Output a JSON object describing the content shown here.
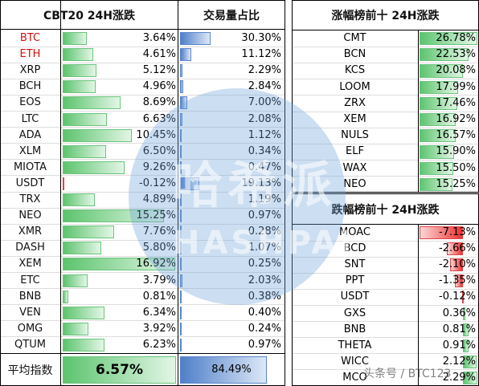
{
  "left_table": {
    "headers": [
      "CBT20 24H涨跌",
      "交易量占比"
    ],
    "rows": [
      {
        "name": "BTC",
        "change": "3.64%",
        "volume": "30.30%",
        "name_color": "#d01010"
      },
      {
        "name": "ETH",
        "change": "4.61%",
        "volume": "11.12%",
        "name_color": "#d01010"
      },
      {
        "name": "XRP",
        "change": "5.12%",
        "volume": "2.29%"
      },
      {
        "name": "BCH",
        "change": "4.96%",
        "volume": "2.84%"
      },
      {
        "name": "EOS",
        "change": "8.69%",
        "volume": "7.00%"
      },
      {
        "name": "LTC",
        "change": "6.63%",
        "volume": "2.08%"
      },
      {
        "name": "ADA",
        "change": "10.45%",
        "volume": "1.12%"
      },
      {
        "name": "XLM",
        "change": "6.50%",
        "volume": "0.34%"
      },
      {
        "name": "MIOTA",
        "change": "9.26%",
        "volume": "0.47%"
      },
      {
        "name": "USDT",
        "change": "-0.12%",
        "volume": "19.13%"
      },
      {
        "name": "TRX",
        "change": "4.89%",
        "volume": "1.19%"
      },
      {
        "name": "NEO",
        "change": "15.25%",
        "volume": "0.97%"
      },
      {
        "name": "XMR",
        "change": "7.76%",
        "volume": "0.28%"
      },
      {
        "name": "DASH",
        "change": "5.80%",
        "volume": "1.07%"
      },
      {
        "name": "XEM",
        "change": "16.92%",
        "volume": "0.25%"
      },
      {
        "name": "ETC",
        "change": "3.79%",
        "volume": "2.03%"
      },
      {
        "name": "BNB",
        "change": "0.81%",
        "volume": "0.38%"
      },
      {
        "name": "VEN",
        "change": "6.34%",
        "volume": "0.40%"
      },
      {
        "name": "OMG",
        "change": "3.92%",
        "volume": "0.24%"
      },
      {
        "name": "QTUM",
        "change": "6.23%",
        "volume": "0.97%"
      }
    ],
    "footer": {
      "name": "平均指数",
      "change": "6.57%",
      "volume": "84.49%"
    }
  },
  "gainers": {
    "title": "涨幅榜前十 24H涨跌",
    "rows": [
      {
        "name": "CMT",
        "change": "26.78%"
      },
      {
        "name": "BCN",
        "change": "22.53%"
      },
      {
        "name": "KCS",
        "change": "20.08%"
      },
      {
        "name": "LOOM",
        "change": "17.99%"
      },
      {
        "name": "ZRX",
        "change": "17.46%"
      },
      {
        "name": "XEM",
        "change": "16.92%"
      },
      {
        "name": "NULS",
        "change": "16.57%"
      },
      {
        "name": "ELF",
        "change": "15.90%"
      },
      {
        "name": "WAX",
        "change": "15.50%"
      },
      {
        "name": "NEO",
        "change": "15.25%"
      }
    ]
  },
  "losers": {
    "title": "跌幅榜前十 24H涨跌",
    "rows": [
      {
        "name": "MOAC",
        "change": "-7.13%"
      },
      {
        "name": "BCD",
        "change": "-2.66%"
      },
      {
        "name": "SNT",
        "change": "-2.10%"
      },
      {
        "name": "PPT",
        "change": "-1.35%"
      },
      {
        "name": "USDT",
        "change": "-0.12%"
      },
      {
        "name": "GXS",
        "change": "0.36%"
      },
      {
        "name": "BNB",
        "change": "0.81%"
      },
      {
        "name": "THETA",
        "change": "0.91%"
      },
      {
        "name": "WICC",
        "change": "2.12%"
      },
      {
        "name": "MCO",
        "change": "2.29%"
      }
    ]
  },
  "watermark": {
    "brand": "哈希派",
    "brand_en": "HASHPAI",
    "source": "头条号 / BTC123"
  }
}
